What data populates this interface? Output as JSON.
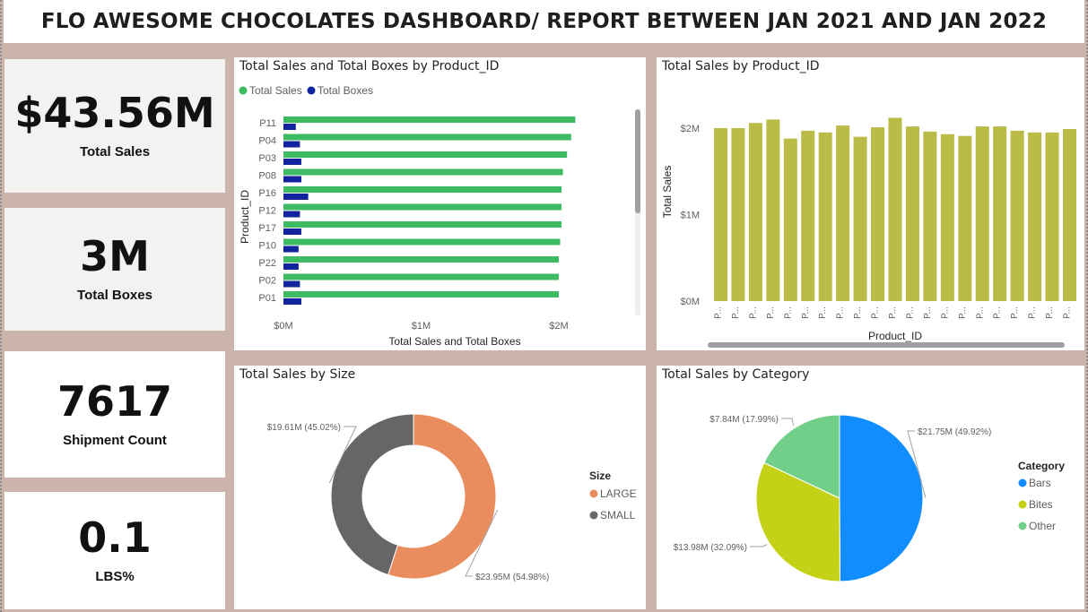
{
  "header": {
    "title": "FLO AWESOME CHOCOLATES DASHBOARD/ REPORT BETWEEN JAN 2021 AND JAN 2022"
  },
  "kpis": {
    "total_sales": {
      "value": "$43.56M",
      "label": "Total Sales"
    },
    "total_boxes": {
      "value": "3M",
      "label": "Total Boxes"
    },
    "shipment_count": {
      "value": "7617",
      "label": "Shipment Count"
    },
    "lbs": {
      "value": "0.1",
      "label": "LBS%"
    }
  },
  "colors": {
    "green": "#3dbb62",
    "navy": "#12239e",
    "olive": "#bbbb48",
    "large": "#e98c5e",
    "small": "#666666",
    "bars": "#118dff",
    "bites": "#c5d117",
    "other": "#72cf8a"
  },
  "chart_data": [
    {
      "type": "bar",
      "title": "Total Sales and Total Boxes by Product_ID",
      "orientation": "horizontal",
      "ylabel": "Product_ID",
      "xlabel": "Total Sales and Total Boxes",
      "legend": [
        "Total Sales",
        "Total Boxes"
      ],
      "categories": [
        "P11",
        "P04",
        "P03",
        "P08",
        "P16",
        "P12",
        "P17",
        "P10",
        "P22",
        "P02",
        "P01"
      ],
      "series": [
        {
          "name": "Total Sales",
          "values": [
            2120000,
            2090000,
            2060000,
            2030000,
            2020000,
            2020000,
            2020000,
            2010000,
            2000000,
            2000000,
            2000000
          ]
        },
        {
          "name": "Total Boxes",
          "values": [
            90000,
            120000,
            130000,
            130000,
            180000,
            120000,
            130000,
            110000,
            110000,
            120000,
            130000
          ]
        }
      ],
      "xticks": [
        "$0M",
        "$1M",
        "$2M"
      ],
      "xlim": [
        0,
        2200000
      ]
    },
    {
      "type": "bar",
      "title": "Total Sales by Product_ID",
      "xlabel": "Product_ID",
      "ylabel": "Total Sales",
      "category_label": "P...",
      "values": [
        2000000,
        2000000,
        2060000,
        2100000,
        1880000,
        1970000,
        1950000,
        2030000,
        1900000,
        2010000,
        2120000,
        2020000,
        1960000,
        1930000,
        1910000,
        2020000,
        2020000,
        1970000,
        1950000,
        1950000,
        1990000
      ],
      "yticks": [
        "$0M",
        "$1M",
        "$2M"
      ],
      "ylim": [
        0,
        2000000
      ]
    },
    {
      "type": "pie",
      "title": "Total Sales by Size",
      "donut": true,
      "legend_title": "Size",
      "slices": [
        {
          "name": "LARGE",
          "value": 23.95,
          "label": "$23.95M (54.98%)"
        },
        {
          "name": "SMALL",
          "value": 19.61,
          "label": "$19.61M (45.02%)"
        }
      ]
    },
    {
      "type": "pie",
      "title": "Total Sales by Category",
      "legend_title": "Category",
      "slices": [
        {
          "name": "Bars",
          "value": 21.75,
          "label": "$21.75M (49.92%)"
        },
        {
          "name": "Bites",
          "value": 13.98,
          "label": "$13.98M (32.09%)"
        },
        {
          "name": "Other",
          "value": 7.84,
          "label": "$7.84M (17.99%)"
        }
      ]
    }
  ]
}
